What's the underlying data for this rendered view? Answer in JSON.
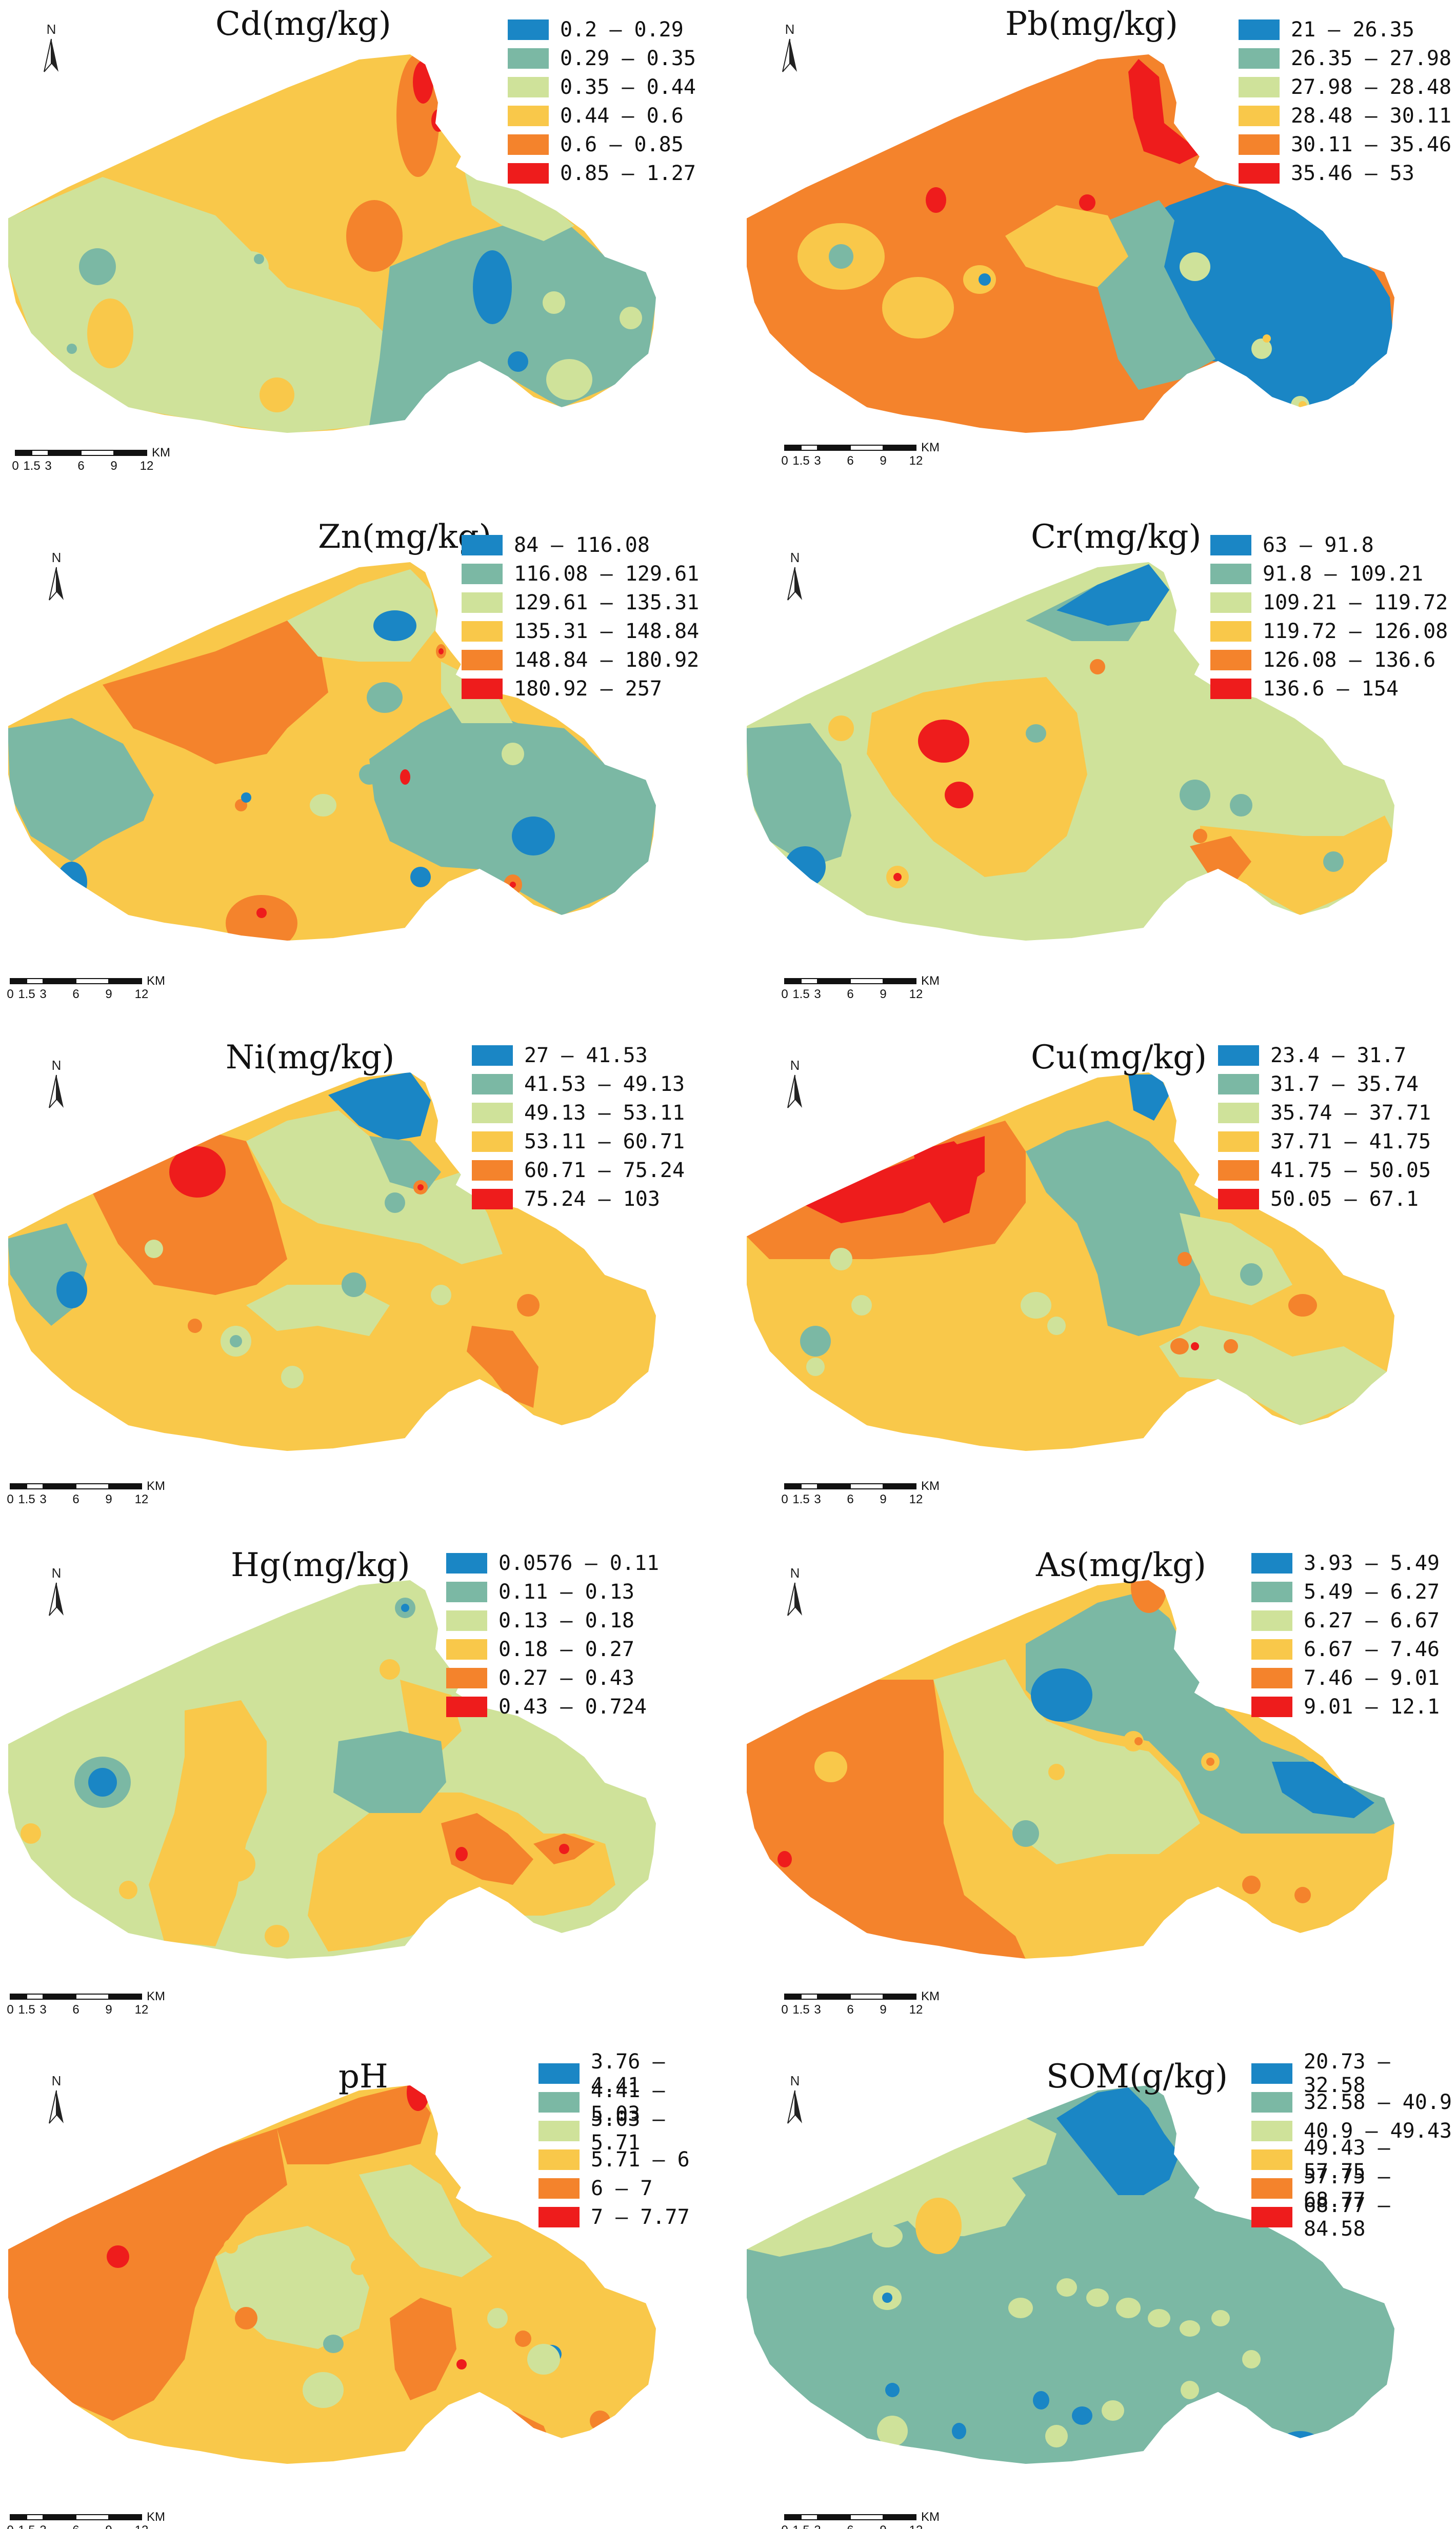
{
  "palette": {
    "class1": "#1a86c5",
    "class2": "#7bb8a4",
    "class3": "#cfe29a",
    "class4": "#f9c84a",
    "class5": "#f4832c",
    "class6": "#ee1c1c",
    "outline": "#ffffff"
  },
  "north_label": "N",
  "scale_bar": {
    "ticks": [
      "0",
      "1.5",
      "3",
      "6",
      "9",
      "12"
    ],
    "unit": "KM"
  },
  "panels": [
    {
      "id": "cd",
      "title": "Cd(mg/kg)",
      "legend": [
        "0.2 – 0.29",
        "0.29 – 0.35",
        "0.35 – 0.44",
        "0.44 – 0.6",
        "0.6 – 0.85",
        "0.85 – 1.27"
      ]
    },
    {
      "id": "pb",
      "title": "Pb(mg/kg)",
      "legend": [
        "21 – 26.35",
        "26.35 – 27.98",
        "27.98 – 28.48",
        "28.48 – 30.11",
        "30.11 – 35.46",
        "35.46 – 53"
      ]
    },
    {
      "id": "zn",
      "title": "Zn(mg/kg)",
      "legend": [
        "84 – 116.08",
        "116.08 – 129.61",
        "129.61 – 135.31",
        "135.31 – 148.84",
        "148.84 – 180.92",
        "180.92 – 257"
      ]
    },
    {
      "id": "cr",
      "title": "Cr(mg/kg)",
      "legend": [
        "63 – 91.8",
        "91.8 – 109.21",
        "109.21 – 119.72",
        "119.72 – 126.08",
        "126.08 – 136.6",
        "136.6 – 154"
      ]
    },
    {
      "id": "ni",
      "title": "Ni(mg/kg)",
      "legend": [
        "27 – 41.53",
        "41.53 – 49.13",
        "49.13 – 53.11",
        "53.11 – 60.71",
        "60.71 – 75.24",
        "75.24 – 103"
      ]
    },
    {
      "id": "cu",
      "title": "Cu(mg/kg)",
      "legend": [
        "23.4 – 31.7",
        "31.7 – 35.74",
        "35.74 – 37.71",
        "37.71 – 41.75",
        "41.75 – 50.05",
        "50.05 – 67.1"
      ]
    },
    {
      "id": "hg",
      "title": "Hg(mg/kg)",
      "legend": [
        "0.0576 – 0.11",
        "0.11 – 0.13",
        "0.13 – 0.18",
        "0.18 – 0.27",
        "0.27 – 0.43",
        "0.43 – 0.724"
      ]
    },
    {
      "id": "as",
      "title": "As(mg/kg)",
      "legend": [
        "3.93 – 5.49",
        "5.49 – 6.27",
        "6.27 – 6.67",
        "6.67 – 7.46",
        "7.46 – 9.01",
        "9.01 – 12.1"
      ]
    },
    {
      "id": "ph",
      "title": "pH",
      "legend": [
        "3.76 – 4.41",
        "4.41 – 5.03",
        "5.03 – 5.71",
        "5.71 – 6",
        "6 – 7",
        "7 – 7.77"
      ]
    },
    {
      "id": "som",
      "title": "SOM(g/kg)",
      "legend": [
        "20.73 – 32.58",
        "32.58 – 40.9",
        "40.9 – 49.43",
        "49.43 – 57.75",
        "57.75 – 68.77",
        "68.77 – 84.58"
      ]
    }
  ]
}
